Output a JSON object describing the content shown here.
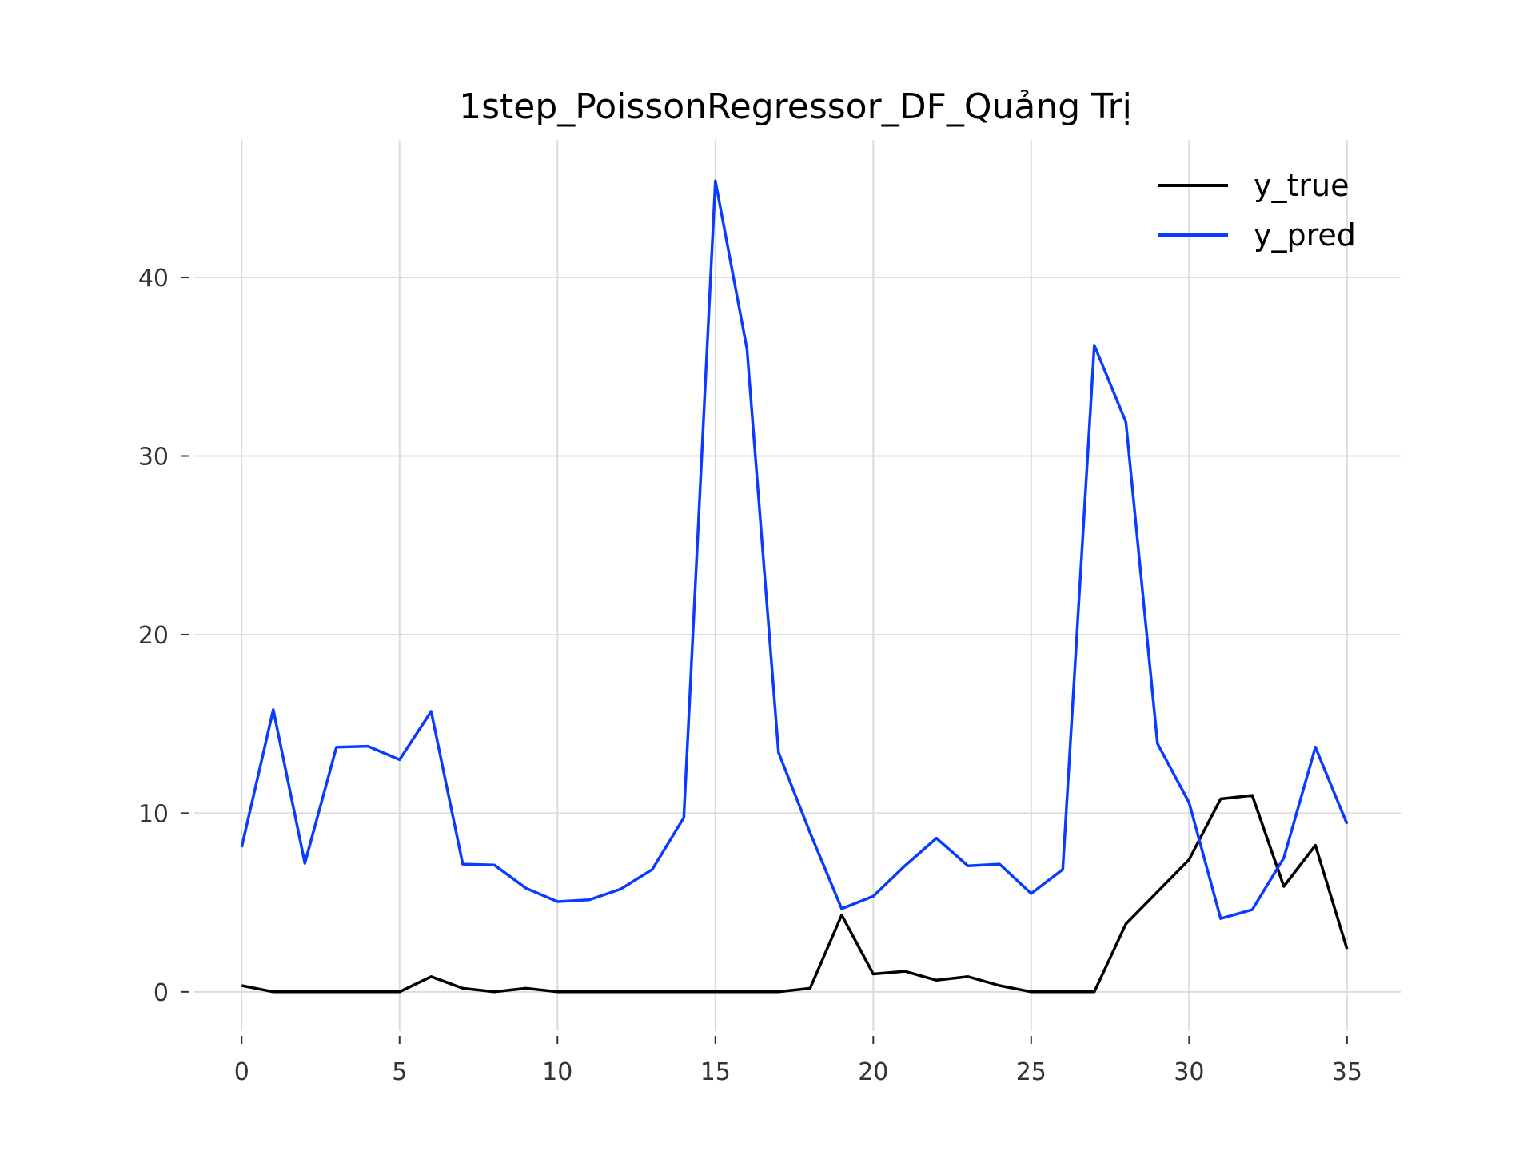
{
  "chart_data": {
    "type": "line",
    "title": "1step_PoissonRegressor_DF_Quảng Trị",
    "xlabel": "",
    "ylabel": "",
    "xlim": [
      -1.5,
      36.7
    ],
    "ylim": [
      -2.2,
      47.7
    ],
    "x_ticks": [
      0,
      5,
      10,
      15,
      20,
      25,
      30,
      35
    ],
    "y_ticks": [
      0,
      10,
      20,
      30,
      40
    ],
    "grid": true,
    "legend_position": "top-right",
    "x": [
      0,
      1,
      2,
      3,
      4,
      5,
      6,
      7,
      8,
      9,
      10,
      11,
      12,
      13,
      14,
      15,
      16,
      17,
      18,
      19,
      20,
      21,
      22,
      23,
      24,
      25,
      26,
      27,
      28,
      29,
      30,
      31,
      32,
      33,
      34,
      35
    ],
    "series": [
      {
        "name": "y_true",
        "color": "#000000",
        "values": [
          0.35,
          0,
          0,
          0,
          0,
          0,
          0.85,
          0.2,
          0,
          0.2,
          0,
          0,
          0,
          0,
          0,
          0,
          0,
          0,
          0.2,
          4.3,
          1.0,
          1.15,
          0.65,
          0.85,
          0.35,
          0,
          0,
          0,
          3.8,
          5.6,
          7.4,
          10.8,
          11.0,
          5.9,
          8.2,
          2.4
        ]
      },
      {
        "name": "y_pred",
        "color": "#0a3cff",
        "values": [
          8.1,
          15.8,
          7.2,
          13.7,
          13.75,
          13.0,
          15.7,
          7.15,
          7.1,
          5.8,
          5.05,
          5.15,
          5.75,
          6.85,
          9.75,
          45.4,
          36.0,
          13.4,
          8.9,
          4.65,
          5.35,
          7.05,
          8.6,
          7.05,
          7.15,
          5.5,
          6.85,
          36.2,
          31.9,
          13.9,
          10.6,
          4.1,
          4.6,
          7.5,
          13.7,
          9.4
        ]
      }
    ]
  }
}
